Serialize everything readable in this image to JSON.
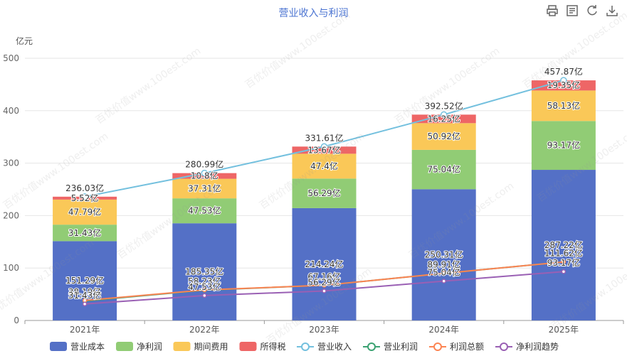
{
  "toolbar": {
    "tools": [
      {
        "name": "print-icon",
        "label": "打印"
      },
      {
        "name": "data-view-icon",
        "label": "数据视图"
      },
      {
        "name": "restore-icon",
        "label": "还原"
      },
      {
        "name": "download-icon",
        "label": "保存为图片"
      }
    ]
  },
  "watermark": {
    "text": "百优价值www.100est.com"
  },
  "colors": {
    "cost": "#5470c6",
    "net": "#91cc75",
    "expense": "#fac858",
    "tax": "#ee6666",
    "revenue_line": "#73c0de",
    "op_profit_line": "#3ba272",
    "total_profit_line": "#fc8452",
    "net_trend_line": "#9a60b4"
  },
  "chart_data": {
    "type": "bar",
    "title": "营业收入与利润",
    "ylabel": "亿元",
    "ylim": [
      0,
      500
    ],
    "yticks": [
      0,
      100,
      200,
      300,
      400,
      500
    ],
    "categories": [
      "2021年",
      "2022年",
      "2023年",
      "2024年",
      "2025年"
    ],
    "unit_suffix": "亿",
    "stacked_series": [
      {
        "name": "营业成本",
        "values": [
          151.29,
          185.35,
          214.24,
          250.31,
          287.22
        ],
        "labels": [
          "151.29亿",
          "185.35亿",
          "214.24亿",
          "250.31亿",
          "287.22亿"
        ]
      },
      {
        "name": "净利润",
        "values": [
          31.43,
          47.53,
          56.29,
          75.04,
          93.17
        ],
        "labels": [
          "31.43亿",
          "47.53亿",
          "56.29亿",
          "75.04亿",
          "93.17亿"
        ]
      },
      {
        "name": "期间费用",
        "values": [
          47.79,
          37.31,
          47.4,
          50.92,
          58.13
        ],
        "labels": [
          "47.79亿",
          "37.31亿",
          "47.4亿",
          "50.92亿",
          "58.13亿"
        ]
      },
      {
        "name": "所得税",
        "values": [
          5.52,
          10.8,
          13.67,
          16.25,
          19.35
        ],
        "labels": [
          "5.52亿",
          "10.8亿",
          "13.67亿",
          "16.25亿",
          "19.35亿"
        ]
      }
    ],
    "line_series": [
      {
        "name": "营业收入",
        "values": [
          236.03,
          280.99,
          331.61,
          392.52,
          457.87
        ],
        "labels": [
          "236.03亿",
          "280.99亿",
          "331.61亿",
          "392.52亿",
          "457.87亿"
        ]
      },
      {
        "name": "营业利润",
        "values": [
          37.16,
          57.81,
          67.16,
          89.91,
          111.62
        ],
        "labels": [
          "",
          "",
          "",
          "",
          ""
        ]
      },
      {
        "name": "利润总额",
        "values": [
          38.19,
          58.23,
          67.16,
          89.91,
          111.62
        ],
        "labels": [
          "38.19亿",
          "58.23亿",
          "67.16亿",
          "89.91亿",
          "111.62亿"
        ]
      },
      {
        "name": "净利润趋势",
        "values": [
          31.43,
          47.53,
          56.29,
          75.04,
          93.17
        ],
        "labels": [
          "31.43亿",
          "47.53亿",
          "56.29亿",
          "75.04亿",
          "93.17亿"
        ]
      }
    ],
    "grid": true,
    "legend_position": "bottom"
  }
}
